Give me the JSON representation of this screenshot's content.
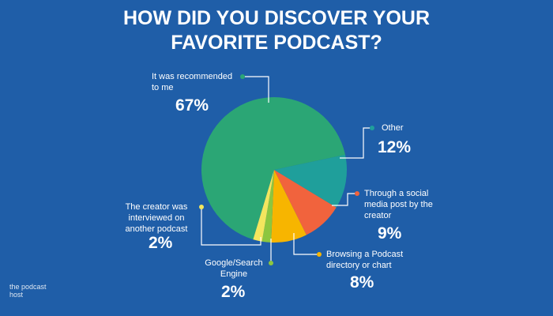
{
  "chart_data": {
    "type": "pie",
    "title": "HOW DID YOU DISCOVER YOUR FAVORITE PODCAST?",
    "categories": [
      "It was recommended to me",
      "Other",
      "Through a social media post by the creator",
      "Browsing a Podcast directory or chart",
      "Google/Search Engine",
      "The creator was interviewed on another podcast"
    ],
    "values": [
      67,
      12,
      9,
      8,
      2,
      2
    ],
    "value_labels": [
      "67%",
      "12%",
      "9%",
      "8%",
      "2%",
      "2%"
    ],
    "colors": [
      "#2ba675",
      "#1f9f9b",
      "#f1633d",
      "#f7b500",
      "#8cc63f",
      "#f3e65e"
    ],
    "logo": "the podcast host"
  }
}
